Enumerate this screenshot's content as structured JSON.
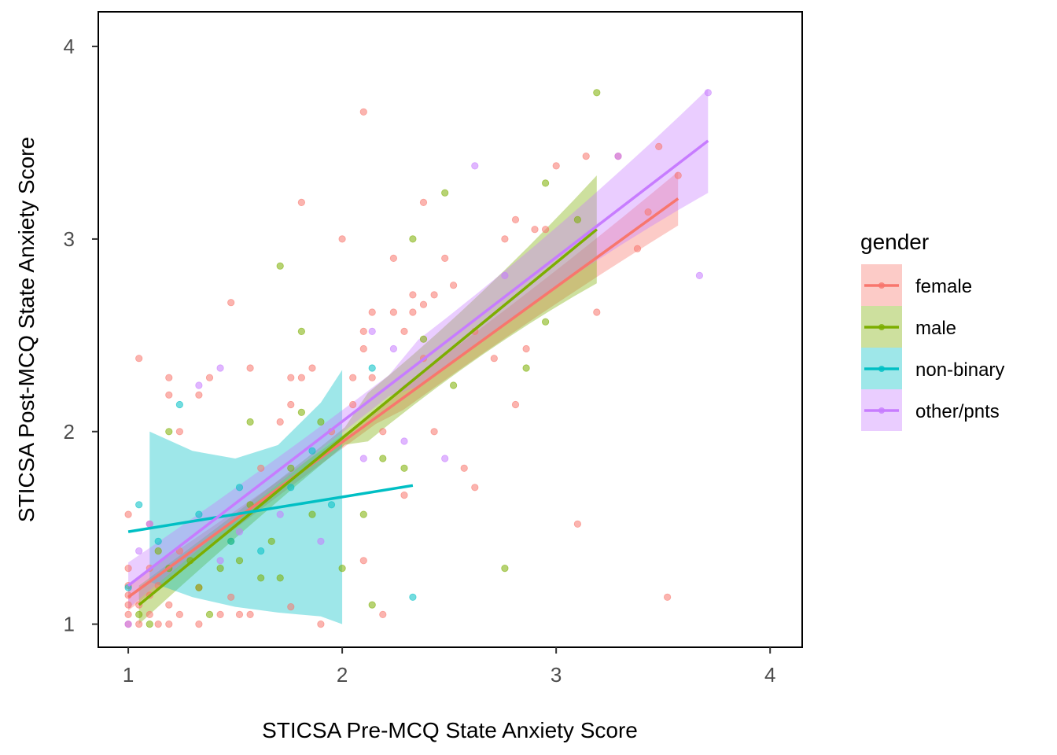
{
  "chart_data": {
    "type": "scatter",
    "xlabel": "STICSA Pre-MCQ State Anxiety Score",
    "ylabel": "STICSA Post-MCQ State Anxiety Score",
    "xlim": [
      0.86,
      4.15
    ],
    "ylim": [
      0.88,
      4.18
    ],
    "x_ticks": [
      1,
      2,
      3,
      4
    ],
    "y_ticks": [
      1,
      2,
      3,
      4
    ],
    "x_tick_labels": [
      "1",
      "2",
      "3",
      "4"
    ],
    "y_tick_labels": [
      "1",
      "2",
      "3",
      "4"
    ],
    "grid": false,
    "legend": {
      "title": "gender",
      "position": "right"
    },
    "series": [
      {
        "name": "female",
        "color": "#F8766D",
        "points": [
          [
            1.0,
            1.0
          ],
          [
            1.0,
            1.05
          ],
          [
            1.0,
            1.1
          ],
          [
            1.0,
            1.15
          ],
          [
            1.0,
            1.2
          ],
          [
            1.0,
            1.29
          ],
          [
            1.0,
            1.57
          ],
          [
            1.05,
            1.0
          ],
          [
            1.05,
            1.1
          ],
          [
            1.05,
            2.38
          ],
          [
            1.1,
            1.05
          ],
          [
            1.1,
            1.15
          ],
          [
            1.1,
            1.29
          ],
          [
            1.1,
            1.52
          ],
          [
            1.14,
            1.0
          ],
          [
            1.14,
            1.2
          ],
          [
            1.19,
            1.0
          ],
          [
            1.19,
            1.1
          ],
          [
            1.19,
            2.19
          ],
          [
            1.19,
            2.28
          ],
          [
            1.24,
            1.05
          ],
          [
            1.24,
            1.38
          ],
          [
            1.24,
            2.0
          ],
          [
            1.33,
            1.0
          ],
          [
            1.33,
            1.19
          ],
          [
            1.33,
            2.19
          ],
          [
            1.38,
            2.28
          ],
          [
            1.43,
            1.05
          ],
          [
            1.48,
            1.14
          ],
          [
            1.48,
            2.67
          ],
          [
            1.52,
            1.05
          ],
          [
            1.57,
            1.05
          ],
          [
            1.57,
            2.33
          ],
          [
            1.62,
            1.81
          ],
          [
            1.71,
            2.05
          ],
          [
            1.76,
            2.14
          ],
          [
            1.76,
            2.28
          ],
          [
            1.76,
            1.09
          ],
          [
            1.81,
            2.28
          ],
          [
            1.81,
            3.19
          ],
          [
            1.86,
            2.33
          ],
          [
            1.9,
            1.0
          ],
          [
            1.95,
            2.0
          ],
          [
            2.0,
            3.0
          ],
          [
            2.05,
            2.14
          ],
          [
            2.05,
            2.28
          ],
          [
            2.1,
            2.43
          ],
          [
            2.1,
            2.52
          ],
          [
            2.1,
            3.66
          ],
          [
            2.1,
            1.33
          ],
          [
            2.14,
            2.62
          ],
          [
            2.14,
            2.28
          ],
          [
            2.19,
            1.05
          ],
          [
            2.19,
            2.0
          ],
          [
            2.24,
            2.62
          ],
          [
            2.24,
            2.9
          ],
          [
            2.29,
            2.52
          ],
          [
            2.29,
            1.67
          ],
          [
            2.33,
            2.62
          ],
          [
            2.33,
            2.71
          ],
          [
            2.38,
            3.19
          ],
          [
            2.38,
            2.38
          ],
          [
            2.38,
            2.66
          ],
          [
            2.43,
            2.71
          ],
          [
            2.43,
            2.0
          ],
          [
            2.48,
            2.9
          ],
          [
            2.52,
            2.76
          ],
          [
            2.57,
            1.81
          ],
          [
            2.62,
            1.71
          ],
          [
            2.62,
            2.52
          ],
          [
            2.71,
            2.38
          ],
          [
            2.76,
            3.0
          ],
          [
            2.81,
            3.1
          ],
          [
            2.81,
            2.14
          ],
          [
            2.86,
            2.43
          ],
          [
            2.9,
            3.05
          ],
          [
            2.95,
            3.05
          ],
          [
            3.0,
            3.38
          ],
          [
            3.1,
            1.52
          ],
          [
            3.14,
            3.43
          ],
          [
            3.19,
            2.62
          ],
          [
            3.29,
            3.43
          ],
          [
            3.38,
            2.95
          ],
          [
            3.43,
            3.14
          ],
          [
            3.48,
            3.48
          ],
          [
            3.52,
            1.14
          ],
          [
            3.57,
            3.33
          ]
        ]
      },
      {
        "name": "male",
        "color": "#7CAE00",
        "points": [
          [
            1.05,
            1.05
          ],
          [
            1.1,
            1.0
          ],
          [
            1.14,
            1.38
          ],
          [
            1.19,
            2.0
          ],
          [
            1.19,
            1.29
          ],
          [
            1.29,
            1.33
          ],
          [
            1.33,
            1.19
          ],
          [
            1.38,
            1.05
          ],
          [
            1.43,
            1.29
          ],
          [
            1.48,
            1.43
          ],
          [
            1.52,
            1.33
          ],
          [
            1.57,
            2.05
          ],
          [
            1.57,
            1.62
          ],
          [
            1.62,
            1.24
          ],
          [
            1.67,
            1.43
          ],
          [
            1.71,
            2.86
          ],
          [
            1.71,
            1.24
          ],
          [
            1.76,
            1.81
          ],
          [
            1.81,
            2.52
          ],
          [
            1.81,
            2.1
          ],
          [
            1.86,
            1.57
          ],
          [
            1.9,
            2.05
          ],
          [
            2.0,
            1.29
          ],
          [
            2.1,
            1.57
          ],
          [
            2.14,
            1.1
          ],
          [
            2.19,
            1.86
          ],
          [
            2.29,
            1.81
          ],
          [
            2.33,
            3.0
          ],
          [
            2.38,
            2.48
          ],
          [
            2.48,
            3.24
          ],
          [
            2.52,
            2.24
          ],
          [
            2.76,
            1.29
          ],
          [
            2.86,
            2.33
          ],
          [
            2.95,
            2.57
          ],
          [
            2.95,
            3.29
          ],
          [
            3.1,
            3.1
          ],
          [
            3.19,
            3.76
          ]
        ]
      },
      {
        "name": "non-binary",
        "color": "#00BFC4",
        "points": [
          [
            1.0,
            1.19
          ],
          [
            1.05,
            1.62
          ],
          [
            1.14,
            1.43
          ],
          [
            1.24,
            2.14
          ],
          [
            1.33,
            1.57
          ],
          [
            1.48,
            1.43
          ],
          [
            1.52,
            1.71
          ],
          [
            1.62,
            1.38
          ],
          [
            1.76,
            1.71
          ],
          [
            1.86,
            1.9
          ],
          [
            1.95,
            1.62
          ],
          [
            2.14,
            2.33
          ],
          [
            2.33,
            1.14
          ]
        ]
      },
      {
        "name": "other/pnts",
        "color": "#C77CFF",
        "points": [
          [
            1.0,
            1.0
          ],
          [
            1.05,
            1.38
          ],
          [
            1.1,
            1.52
          ],
          [
            1.33,
            2.24
          ],
          [
            1.43,
            2.33
          ],
          [
            1.43,
            1.33
          ],
          [
            1.52,
            1.48
          ],
          [
            1.71,
            1.57
          ],
          [
            1.9,
            1.43
          ],
          [
            2.1,
            1.86
          ],
          [
            2.14,
            2.52
          ],
          [
            2.24,
            2.43
          ],
          [
            2.29,
            1.95
          ],
          [
            2.48,
            1.86
          ],
          [
            2.62,
            3.38
          ],
          [
            2.76,
            2.81
          ],
          [
            3.29,
            3.43
          ],
          [
            3.67,
            2.81
          ],
          [
            3.71,
            3.76
          ]
        ]
      }
    ],
    "fits": [
      {
        "name": "female",
        "color": "#F8766D",
        "x0": 1.0,
        "y0": 1.14,
        "x1": 3.57,
        "y1": 3.21,
        "ci0": 0.07,
        "ci1": 0.14
      },
      {
        "name": "male",
        "color": "#7CAE00",
        "x0": 1.05,
        "y0": 1.1,
        "x1": 3.19,
        "y1": 3.05,
        "ci0": 0.1,
        "ci1": 0.28
      },
      {
        "name": "non-binary",
        "color": "#00BFC4",
        "x0": 1.0,
        "y0": 1.48,
        "x1": 2.33,
        "y1": 1.72,
        "band": [
          [
            1.1,
            1.22,
            2.0
          ],
          [
            1.3,
            1.14,
            1.9
          ],
          [
            1.5,
            1.09,
            1.86
          ],
          [
            1.7,
            1.06,
            1.93
          ],
          [
            1.9,
            1.04,
            2.15
          ],
          [
            2.0,
            1.0,
            2.32
          ]
        ]
      },
      {
        "name": "other/pnts",
        "color": "#C77CFF",
        "x0": 1.0,
        "y0": 1.2,
        "x1": 3.71,
        "y1": 3.51,
        "ci0": 0.12,
        "ci1": 0.27
      }
    ]
  }
}
